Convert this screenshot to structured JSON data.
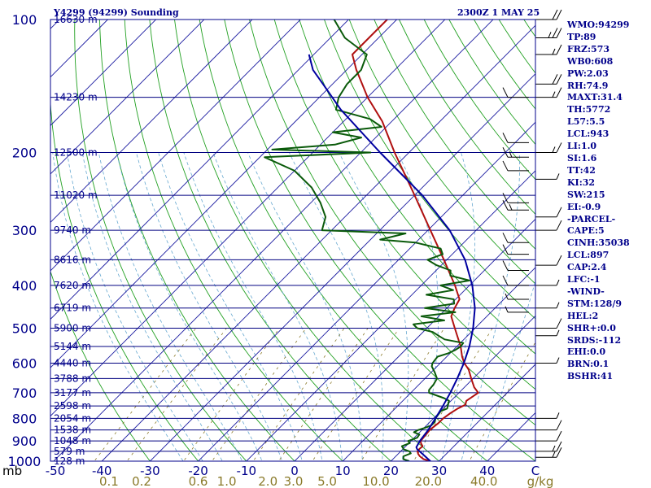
{
  "header": {
    "station": "Y4299 (94299) Sounding",
    "time": "2300Z  1 MAY 25"
  },
  "indices": [
    "WMO:94299",
    "TP:89",
    "FRZ:573",
    "WB0:608",
    "PW:2.03",
    "RH:74.9",
    "MAXT:31.4",
    "TH:5772",
    "L57:5.5",
    "LCL:943",
    "LI:1.0",
    "SI:1.6",
    "TT:42",
    "KI:32",
    "SW:215",
    "EI:-0.9",
    "-PARCEL-",
    "CAPE:5",
    "CINH:35038",
    "LCL:897",
    "CAP:2.4",
    "LFC:-1",
    "-WIND-",
    "STM:128/9",
    "HEL:2",
    "SHR+:0.0",
    "SRDS:-112",
    "EHI:0.0",
    "BRN:0.1",
    "BSHR:41"
  ],
  "chart_data": {
    "type": "skew-t log-p sounding",
    "x_unit_label": "C",
    "y_unit_label": "mb",
    "xlim": [
      -50,
      50
    ],
    "ylim": [
      1000,
      100
    ],
    "temperature_ticks": [
      -40,
      -30,
      -20,
      -10,
      0,
      10,
      20,
      30,
      40
    ],
    "temperature_tick_labels": [
      "-50",
      "-40",
      "-30",
      "-20",
      "-10",
      "0",
      "10",
      "20",
      "30",
      "40",
      "C"
    ],
    "pressure_ticks": [
      {
        "p": 100,
        "label": "100"
      },
      {
        "p": 200,
        "label": "200"
      },
      {
        "p": 300,
        "label": "300"
      },
      {
        "p": 400,
        "label": "400"
      },
      {
        "p": 500,
        "label": "500"
      },
      {
        "p": 600,
        "label": "600"
      },
      {
        "p": 700,
        "label": "700"
      },
      {
        "p": 800,
        "label": "800"
      },
      {
        "p": 900,
        "label": "900"
      },
      {
        "p": 1000,
        "label": "1000"
      }
    ],
    "height_levels": [
      {
        "p": 100,
        "label": "16630 m"
      },
      {
        "p": 150,
        "label": "14230 m"
      },
      {
        "p": 200,
        "label": "12500 m"
      },
      {
        "p": 250,
        "label": "11020 m"
      },
      {
        "p": 300,
        "label": "9740 m"
      },
      {
        "p": 350,
        "label": "8616 m"
      },
      {
        "p": 400,
        "label": "7620 m"
      },
      {
        "p": 450,
        "label": "6719 m"
      },
      {
        "p": 500,
        "label": "5900 m"
      },
      {
        "p": 550,
        "label": "5144 m"
      },
      {
        "p": 600,
        "label": "4440 m"
      },
      {
        "p": 650,
        "label": "3788 m"
      },
      {
        "p": 700,
        "label": "3177 m"
      },
      {
        "p": 750,
        "label": "2598 m"
      },
      {
        "p": 800,
        "label": "2054 m"
      },
      {
        "p": 850,
        "label": "1538 m"
      },
      {
        "p": 900,
        "label": "1048 m"
      },
      {
        "p": 950,
        "label": "579 m"
      },
      {
        "p": 1000,
        "label": "128 m"
      }
    ],
    "mixing_ratio_labels": [
      {
        "w": 0.1,
        "label": "0.1"
      },
      {
        "w": 0.2,
        "label": "0.2"
      },
      {
        "w": 0.6,
        "label": "0.6"
      },
      {
        "w": 1.0,
        "label": "1.0"
      },
      {
        "w": 2.0,
        "label": "2.0"
      },
      {
        "w": 3.0,
        "label": "3.0"
      },
      {
        "w": 5.0,
        "label": "5.0"
      },
      {
        "w": 10.0,
        "label": "10.0"
      },
      {
        "w": 20.0,
        "label": "20.0"
      },
      {
        "w": 40.0,
        "label": "40.0"
      }
    ],
    "mixing_ratio_unit": "g/kg",
    "series": [
      {
        "role": "temperature",
        "color": "#b01010",
        "points": [
          [
            1000,
            28.2
          ],
          [
            990,
            26.4
          ],
          [
            975,
            25.0
          ],
          [
            962,
            24.1
          ],
          [
            950,
            23.5
          ],
          [
            938,
            23.4
          ],
          [
            925,
            23.5
          ],
          [
            912,
            22.6
          ],
          [
            900,
            22.0
          ],
          [
            850,
            21.6
          ],
          [
            820,
            22.0
          ],
          [
            800,
            22.0
          ],
          [
            780,
            22.4
          ],
          [
            760,
            23.0
          ],
          [
            745,
            23.8
          ],
          [
            730,
            23.2
          ],
          [
            700,
            24.0
          ],
          [
            680,
            22.0
          ],
          [
            650,
            19.6
          ],
          [
            620,
            17.2
          ],
          [
            600,
            15.0
          ],
          [
            580,
            13.2
          ],
          [
            550,
            10.8
          ],
          [
            500,
            5.8
          ],
          [
            470,
            2.6
          ],
          [
            450,
            1.6
          ],
          [
            430,
            0.8
          ],
          [
            400,
            -3.0
          ],
          [
            350,
            -10.6
          ],
          [
            300,
            -19.5
          ],
          [
            250,
            -30.0
          ],
          [
            200,
            -43.0
          ],
          [
            170,
            -52.0
          ],
          [
            150,
            -60.0
          ],
          [
            130,
            -68.0
          ],
          [
            120,
            -72.0
          ],
          [
            110,
            -72.0
          ],
          [
            100,
            -72.0
          ]
        ]
      },
      {
        "role": "dewpoint",
        "color": "#0a5a0a",
        "points": [
          [
            1000,
            23.8
          ],
          [
            990,
            22.2
          ],
          [
            975,
            21.6
          ],
          [
            960,
            22.5
          ],
          [
            950,
            21.8
          ],
          [
            940,
            20.2
          ],
          [
            925,
            19.2
          ],
          [
            910,
            20.2
          ],
          [
            900,
            19.4
          ],
          [
            885,
            20.6
          ],
          [
            870,
            20.4
          ],
          [
            860,
            18.8
          ],
          [
            850,
            19.2
          ],
          [
            840,
            20.2
          ],
          [
            830,
            21.0
          ],
          [
            815,
            21.0
          ],
          [
            800,
            20.4
          ],
          [
            785,
            20.2
          ],
          [
            770,
            20.0
          ],
          [
            760,
            20.8
          ],
          [
            750,
            20.4
          ],
          [
            740,
            20.0
          ],
          [
            730,
            19.6
          ],
          [
            720,
            18.0
          ],
          [
            700,
            13.8
          ],
          [
            690,
            13.2
          ],
          [
            670,
            13.0
          ],
          [
            650,
            12.5
          ],
          [
            630,
            10.8
          ],
          [
            610,
            8.9
          ],
          [
            600,
            8.4
          ],
          [
            580,
            8.1
          ],
          [
            570,
            9.6
          ],
          [
            560,
            10.4
          ],
          [
            550,
            10.8
          ],
          [
            540,
            10.6
          ],
          [
            530,
            6.0
          ],
          [
            520,
            4.0
          ],
          [
            510,
            2.0
          ],
          [
            500,
            -2.0
          ],
          [
            490,
            -3.6
          ],
          [
            480,
            2.0
          ],
          [
            470,
            -3.6
          ],
          [
            460,
            2.6
          ],
          [
            450,
            -4.6
          ],
          [
            440,
            0.6
          ],
          [
            430,
            -0.4
          ],
          [
            420,
            -7.0
          ],
          [
            410,
            -2.4
          ],
          [
            400,
            -6.0
          ],
          [
            390,
            -1.0
          ],
          [
            380,
            -6.0
          ],
          [
            370,
            -7.0
          ],
          [
            360,
            -11.0
          ],
          [
            350,
            -14.0
          ],
          [
            340,
            -12.0
          ],
          [
            330,
            -13.6
          ],
          [
            320,
            -20.0
          ],
          [
            315,
            -28.0
          ],
          [
            305,
            -24.0
          ],
          [
            300,
            -42.0
          ],
          [
            280,
            -44.0
          ],
          [
            260,
            -48.0
          ],
          [
            240,
            -53.0
          ],
          [
            220,
            -60.0
          ],
          [
            205,
            -69.0
          ],
          [
            200,
            -48.0
          ],
          [
            197,
            -69.0
          ],
          [
            192,
            -57.0
          ],
          [
            185,
            -53.0
          ],
          [
            180,
            -60.0
          ],
          [
            175,
            -51.0
          ],
          [
            168,
            -55.0
          ],
          [
            160,
            -64.0
          ],
          [
            150,
            -66.0
          ],
          [
            140,
            -67.0
          ],
          [
            130,
            -67.0
          ],
          [
            120,
            -69.0
          ],
          [
            110,
            -77.0
          ],
          [
            100,
            -83.0
          ]
        ]
      },
      {
        "role": "parcel",
        "color": "#0000a0",
        "points": [
          [
            1000,
            28.2
          ],
          [
            960,
            24.8
          ],
          [
            940,
            23.0
          ],
          [
            930,
            22.4
          ],
          [
            897,
            21.8
          ],
          [
            850,
            21.3
          ],
          [
            800,
            20.4
          ],
          [
            750,
            19.4
          ],
          [
            700,
            18.2
          ],
          [
            650,
            16.7
          ],
          [
            600,
            14.9
          ],
          [
            550,
            12.6
          ],
          [
            500,
            9.6
          ],
          [
            450,
            5.8
          ],
          [
            400,
            0.6
          ],
          [
            350,
            -6.2
          ],
          [
            300,
            -15.5
          ],
          [
            250,
            -28.4
          ],
          [
            200,
            -46.0
          ],
          [
            160,
            -63.0
          ],
          [
            140,
            -72.0
          ],
          [
            130,
            -77.0
          ],
          [
            120,
            -81.0
          ]
        ]
      }
    ],
    "wind_barbs_right": [
      {
        "p": 100,
        "spd": 20
      },
      {
        "p": 110,
        "spd": 25
      },
      {
        "p": 120,
        "spd": 15
      },
      {
        "p": 140,
        "spd": 20
      },
      {
        "p": 150,
        "spd": 15
      },
      {
        "p": 200,
        "spd": 15
      },
      {
        "p": 230,
        "spd": 5
      },
      {
        "p": 280,
        "spd": 10
      },
      {
        "p": 300,
        "spd": 10
      },
      {
        "p": 360,
        "spd": 10
      },
      {
        "p": 400,
        "spd": 5
      },
      {
        "p": 450,
        "spd": 5
      },
      {
        "p": 500,
        "spd": 10
      },
      {
        "p": 520,
        "spd": 5
      },
      {
        "p": 600,
        "spd": 5
      },
      {
        "p": 800,
        "spd": 5
      },
      {
        "p": 850,
        "spd": 10
      },
      {
        "p": 900,
        "spd": 10
      },
      {
        "p": 950,
        "spd": 15
      },
      {
        "p": 980,
        "spd": 15
      }
    ],
    "wind_barbs_left": [
      {
        "p": 150,
        "spd": 10
      },
      {
        "p": 190,
        "spd": 10
      },
      {
        "p": 205,
        "spd": 15
      },
      {
        "p": 220,
        "spd": 10
      },
      {
        "p": 260,
        "spd": 10
      },
      {
        "p": 270,
        "spd": 15
      },
      {
        "p": 320,
        "spd": 10
      },
      {
        "p": 340,
        "spd": 10
      },
      {
        "p": 370,
        "spd": 10
      },
      {
        "p": 400,
        "spd": 10
      },
      {
        "p": 430,
        "spd": 5
      },
      {
        "p": 460,
        "spd": 5
      }
    ],
    "colors": {
      "isobar": "#000080",
      "isotherm": "#1a1aa0",
      "dry_adiabat": "#22a022",
      "moist_adiabat": "#66a8d0",
      "mixing_ratio": "#8a7a2a",
      "frame": "#00008b"
    }
  }
}
